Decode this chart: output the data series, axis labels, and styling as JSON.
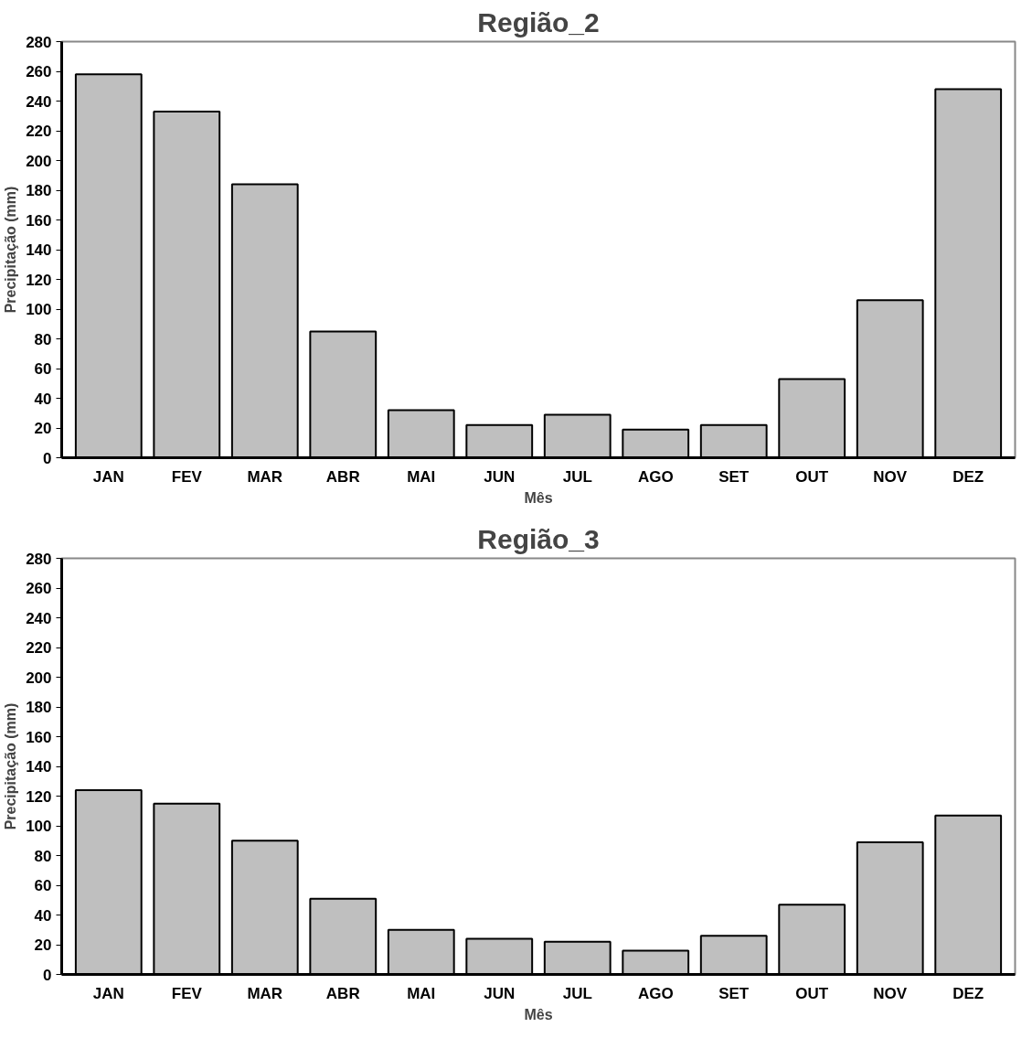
{
  "chart_data": [
    {
      "type": "bar",
      "title": "Região_2",
      "xlabel": "Mês",
      "ylabel": "Precipitação (mm)",
      "categories": [
        "JAN",
        "FEV",
        "MAR",
        "ABR",
        "MAI",
        "JUN",
        "JUL",
        "AGO",
        "SET",
        "OUT",
        "NOV",
        "DEZ"
      ],
      "values": [
        258,
        233,
        184,
        85,
        32,
        22,
        29,
        19,
        22,
        53,
        106,
        248
      ],
      "color": "#bfbfbf",
      "ylim": [
        0,
        280
      ],
      "yticks": [
        0,
        20,
        40,
        60,
        80,
        100,
        120,
        140,
        160,
        180,
        200,
        220,
        240,
        260,
        280
      ],
      "grid": false
    },
    {
      "type": "bar",
      "title": "Região_3",
      "xlabel": "Mês",
      "ylabel": "Precipitação (mm)",
      "categories": [
        "JAN",
        "FEV",
        "MAR",
        "ABR",
        "MAI",
        "JUN",
        "JUL",
        "AGO",
        "SET",
        "OUT",
        "NOV",
        "DEZ"
      ],
      "values": [
        124,
        115,
        90,
        51,
        30,
        24,
        22,
        16,
        26,
        47,
        89,
        107
      ],
      "color": "#bfbfbf",
      "ylim": [
        0,
        280
      ],
      "yticks": [
        0,
        20,
        40,
        60,
        80,
        100,
        120,
        140,
        160,
        180,
        200,
        220,
        240,
        260,
        280
      ],
      "grid": false
    }
  ]
}
